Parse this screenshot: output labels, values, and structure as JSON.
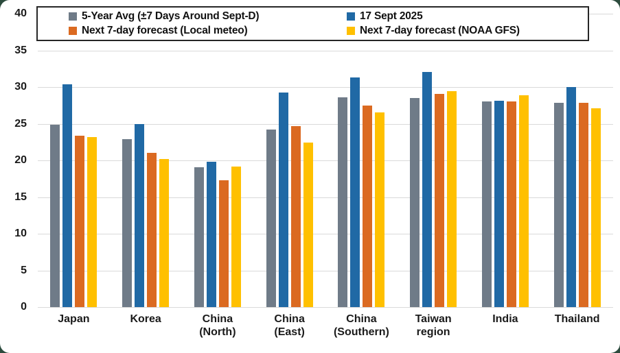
{
  "frame": {
    "card_background": "#FFFFFF",
    "outer_background": "#2C4B3D",
    "gridline_color": "#D9D9D9"
  },
  "chart_data": {
    "type": "bar",
    "title": "",
    "xlabel": "",
    "ylabel": "",
    "ylim": [
      0,
      40
    ],
    "yticks": [
      0,
      5,
      10,
      15,
      20,
      25,
      30,
      35,
      40
    ],
    "grid": "horizontal",
    "legend_position": "top",
    "categories": [
      "Japan",
      "Korea",
      "China\n(North)",
      "China\n(East)",
      "China\n(Southern)",
      "Taiwan\nregion",
      "India",
      "Thailand"
    ],
    "series": [
      {
        "name": "5-Year Avg (±7 Days Around Sept-D)",
        "color": "#6F7B88",
        "values": [
          24.9,
          22.9,
          19.1,
          24.2,
          28.6,
          28.5,
          28.0,
          27.9
        ]
      },
      {
        "name": "17 Sept 2025",
        "color": "#2069A5",
        "values": [
          30.4,
          25.0,
          19.8,
          29.3,
          31.3,
          32.1,
          28.1,
          30.0
        ]
      },
      {
        "name": "Next 7-day forecast (Local meteo)",
        "color": "#DB6A21",
        "values": [
          23.4,
          21.0,
          17.3,
          24.7,
          27.5,
          29.1,
          28.0,
          27.9
        ]
      },
      {
        "name": "Next 7-day forecast (NOAA GFS)",
        "color": "#FFC000",
        "values": [
          23.2,
          20.2,
          19.2,
          22.4,
          26.5,
          29.4,
          28.9,
          27.1
        ]
      }
    ]
  }
}
